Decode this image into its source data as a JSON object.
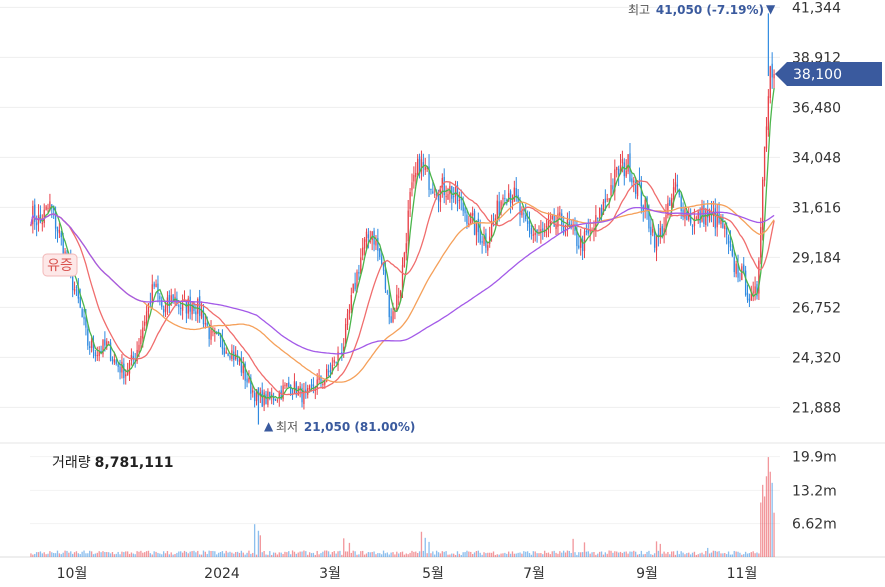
{
  "chart_data": {
    "type": "candlestick",
    "price_axis": {
      "ticks": [
        41344,
        38912,
        36480,
        34048,
        31616,
        29184,
        26752,
        24320,
        21888
      ],
      "tick_labels": [
        "41,344",
        "38,912",
        "36,480",
        "34,048",
        "31,616",
        "29,184",
        "26,752",
        "24,320",
        "21,888"
      ],
      "ylim": [
        20300,
        41700
      ]
    },
    "x_axis": {
      "labels": [
        "10월",
        "2024",
        "3월",
        "5월",
        "7월",
        "9월",
        "11월"
      ]
    },
    "current_price": {
      "value": 38100,
      "label": "38,100"
    },
    "high_annotation": {
      "prefix": "최고",
      "value_text": "41,050 (-7.19%)",
      "value": 41050,
      "marker": "▼"
    },
    "low_annotation": {
      "prefix": "최저",
      "value_text": "21,050 (81.00%)",
      "value": 21050,
      "marker": "▲"
    },
    "event_badge": "유증",
    "volume": {
      "title": "거래량",
      "value_text": "8,781,111",
      "ticks": [
        19900000,
        13200000,
        6620000
      ],
      "tick_labels": [
        "19.9m",
        "13.2m",
        "6.62m"
      ],
      "ylim": [
        0,
        22000000
      ]
    },
    "colors": {
      "up": "#e8424a",
      "down": "#2f8ae0",
      "ma5": "#4bb54b",
      "ma20": "#f06d6d",
      "ma60": "#f5a05a",
      "ma120": "#a35ae8",
      "current_tag": "#3a5a9e",
      "annotation": "#3a5a9e"
    },
    "moving_averages": [
      {
        "period": 5,
        "color": "#4bb54b"
      },
      {
        "period": 20,
        "color": "#f06d6d"
      },
      {
        "period": 60,
        "color": "#f5a05a"
      },
      {
        "period": 120,
        "color": "#a35ae8"
      }
    ],
    "close_path": [
      [
        0,
        31300
      ],
      [
        5,
        30900
      ],
      [
        10,
        31700
      ],
      [
        15,
        30300
      ],
      [
        20,
        28600
      ],
      [
        25,
        27000
      ],
      [
        30,
        25000
      ],
      [
        35,
        24600
      ],
      [
        40,
        24900
      ],
      [
        45,
        24000
      ],
      [
        50,
        23600
      ],
      [
        55,
        24400
      ],
      [
        60,
        26200
      ],
      [
        65,
        27800
      ],
      [
        70,
        26500
      ],
      [
        75,
        27300
      ],
      [
        80,
        26700
      ],
      [
        85,
        27000
      ],
      [
        90,
        26500
      ],
      [
        95,
        25300
      ],
      [
        100,
        25000
      ],
      [
        105,
        24700
      ],
      [
        110,
        24000
      ],
      [
        115,
        23000
      ],
      [
        120,
        22300
      ],
      [
        125,
        22300
      ],
      [
        130,
        22500
      ],
      [
        135,
        22900
      ],
      [
        140,
        22800
      ],
      [
        145,
        22300
      ],
      [
        150,
        23000
      ],
      [
        155,
        23300
      ],
      [
        160,
        24000
      ],
      [
        165,
        25000
      ],
      [
        170,
        27500
      ],
      [
        175,
        29600
      ],
      [
        180,
        30500
      ],
      [
        185,
        28800
      ],
      [
        190,
        26200
      ],
      [
        195,
        27800
      ],
      [
        200,
        32000
      ],
      [
        205,
        33800
      ],
      [
        210,
        33000
      ],
      [
        215,
        32500
      ],
      [
        220,
        32600
      ],
      [
        225,
        31900
      ],
      [
        230,
        31300
      ],
      [
        235,
        30500
      ],
      [
        240,
        30000
      ],
      [
        245,
        31100
      ],
      [
        250,
        32600
      ],
      [
        255,
        32100
      ],
      [
        260,
        30800
      ],
      [
        265,
        30400
      ],
      [
        270,
        30300
      ],
      [
        275,
        30700
      ],
      [
        280,
        30900
      ],
      [
        285,
        30400
      ],
      [
        290,
        29800
      ],
      [
        295,
        30300
      ],
      [
        300,
        31200
      ],
      [
        305,
        32400
      ],
      [
        310,
        33400
      ],
      [
        315,
        33700
      ],
      [
        320,
        32600
      ],
      [
        325,
        31200
      ],
      [
        330,
        29900
      ],
      [
        335,
        31000
      ],
      [
        340,
        32600
      ],
      [
        345,
        31400
      ],
      [
        350,
        30900
      ],
      [
        355,
        31300
      ],
      [
        360,
        31100
      ],
      [
        365,
        30700
      ],
      [
        370,
        28900
      ],
      [
        375,
        28300
      ],
      [
        380,
        27000
      ],
      [
        383,
        27500
      ],
      [
        386,
        33000
      ],
      [
        388,
        36000
      ],
      [
        390,
        38500
      ],
      [
        392,
        38100
      ]
    ],
    "volume_spikes": [
      [
        118,
        6500000
      ],
      [
        120,
        5200000
      ],
      [
        121,
        4300000
      ],
      [
        165,
        3700000
      ],
      [
        168,
        2800000
      ],
      [
        206,
        5000000
      ],
      [
        208,
        3800000
      ],
      [
        210,
        3000000
      ],
      [
        286,
        3600000
      ],
      [
        292,
        2900000
      ],
      [
        330,
        3100000
      ],
      [
        332,
        2600000
      ],
      [
        357,
        1800000
      ],
      [
        385,
        10800000
      ],
      [
        386,
        14300000
      ],
      [
        387,
        12000000
      ],
      [
        388,
        16000000
      ],
      [
        389,
        19800000
      ],
      [
        390,
        16900000
      ],
      [
        391,
        14700000
      ],
      [
        392,
        8781111
      ]
    ]
  }
}
